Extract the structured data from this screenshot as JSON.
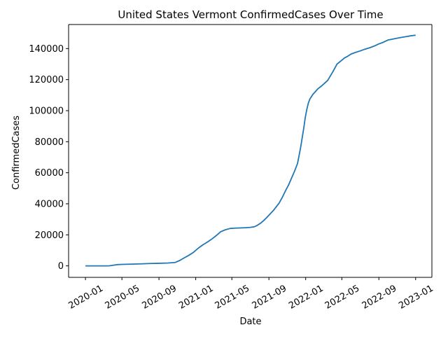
{
  "chart_data": {
    "type": "line",
    "title": "United States Vermont ConfirmedCases Over Time",
    "xlabel": "Date",
    "ylabel": "ConfirmedCases",
    "x_tick_labels": [
      "2020-01",
      "2020-05",
      "2020-09",
      "2021-01",
      "2021-05",
      "2021-09",
      "2022-01",
      "2022-05",
      "2022-09",
      "2023-01"
    ],
    "x_tick_dates": [
      "2020-01-01",
      "2020-05-01",
      "2020-09-01",
      "2021-01-01",
      "2021-05-01",
      "2021-09-01",
      "2022-01-01",
      "2022-05-01",
      "2022-09-01",
      "2023-01-01"
    ],
    "y_tick_labels": [
      "0",
      "20000",
      "40000",
      "60000",
      "80000",
      "100000",
      "120000",
      "140000"
    ],
    "y_tick_values": [
      0,
      20000,
      40000,
      60000,
      80000,
      100000,
      120000,
      140000
    ],
    "xlim": [
      "2019-11-06",
      "2023-02-24"
    ],
    "ylim": [
      -7400,
      155500
    ],
    "grid": false,
    "line_color": "#1f77b4",
    "series": [
      {
        "x": [
          "2020-01-01",
          "2020-03-07",
          "2020-03-20",
          "2020-04-01",
          "2020-04-15",
          "2020-05-01",
          "2020-06-01",
          "2020-07-01",
          "2020-08-01",
          "2020-09-01",
          "2020-10-01",
          "2020-10-25",
          "2020-11-10",
          "2020-11-25",
          "2020-12-10",
          "2020-12-25",
          "2021-01-10",
          "2021-01-25",
          "2021-02-10",
          "2021-02-25",
          "2021-03-10",
          "2021-03-25",
          "2021-04-10",
          "2021-04-25",
          "2021-05-10",
          "2021-05-25",
          "2021-06-15",
          "2021-07-01",
          "2021-07-15",
          "2021-07-25",
          "2021-08-05",
          "2021-08-15",
          "2021-08-25",
          "2021-09-05",
          "2021-09-15",
          "2021-09-25",
          "2021-10-05",
          "2021-10-15",
          "2021-10-25",
          "2021-11-05",
          "2021-11-15",
          "2021-11-25",
          "2021-12-05",
          "2021-12-15",
          "2021-12-25",
          "2021-12-31",
          "2022-01-05",
          "2022-01-10",
          "2022-01-15",
          "2022-01-20",
          "2022-01-25",
          "2022-02-01",
          "2022-02-10",
          "2022-02-20",
          "2022-03-01",
          "2022-03-15",
          "2022-04-01",
          "2022-04-15",
          "2022-05-01",
          "2022-05-10",
          "2022-05-20",
          "2022-06-01",
          "2022-06-15",
          "2022-07-01",
          "2022-07-15",
          "2022-08-01",
          "2022-08-15",
          "2022-09-01",
          "2022-09-15",
          "2022-10-01",
          "2022-10-15",
          "2022-11-01",
          "2022-11-15",
          "2022-12-01",
          "2022-12-15",
          "2023-01-01"
        ],
        "y": [
          0,
          0,
          50,
          400,
          800,
          950,
          1100,
          1300,
          1500,
          1650,
          1850,
          2200,
          3600,
          5300,
          6900,
          8800,
          11500,
          13600,
          15500,
          17500,
          19500,
          22000,
          23300,
          24100,
          24300,
          24400,
          24600,
          24800,
          25200,
          26200,
          27600,
          29300,
          31200,
          33500,
          35500,
          38000,
          40500,
          44000,
          48000,
          52000,
          56500,
          61000,
          66000,
          76000,
          88000,
          96000,
          101000,
          105000,
          107500,
          109000,
          110500,
          112000,
          114000,
          115500,
          117000,
          119500,
          125000,
          130000,
          132500,
          134000,
          135000,
          136500,
          137500,
          138500,
          139500,
          140500,
          141500,
          143000,
          144000,
          145500,
          146000,
          146700,
          147200,
          147700,
          148200,
          148600
        ]
      }
    ]
  }
}
